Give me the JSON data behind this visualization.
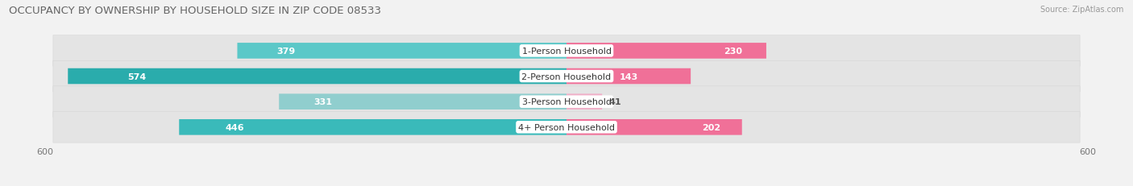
{
  "title": "OCCUPANCY BY OWNERSHIP BY HOUSEHOLD SIZE IN ZIP CODE 08533",
  "source": "Source: ZipAtlas.com",
  "categories": [
    "1-Person Household",
    "2-Person Household",
    "3-Person Household",
    "4+ Person Household"
  ],
  "owner_values": [
    379,
    574,
    331,
    446
  ],
  "renter_values": [
    230,
    143,
    41,
    202
  ],
  "owner_colors": [
    "#5BC8C8",
    "#2AACAC",
    "#90CECE",
    "#3ABABA"
  ],
  "renter_colors": [
    "#F07098",
    "#F07098",
    "#F0B0C8",
    "#F07098"
  ],
  "axis_max": 600,
  "bg_color": "#f2f2f2",
  "row_bg_color": "#e8e8e8",
  "owner_legend_color": "#3ABABA",
  "renter_legend_color": "#F07098",
  "title_fontsize": 9.5,
  "label_fontsize": 8,
  "value_fontsize": 8,
  "tick_fontsize": 8,
  "source_fontsize": 7
}
